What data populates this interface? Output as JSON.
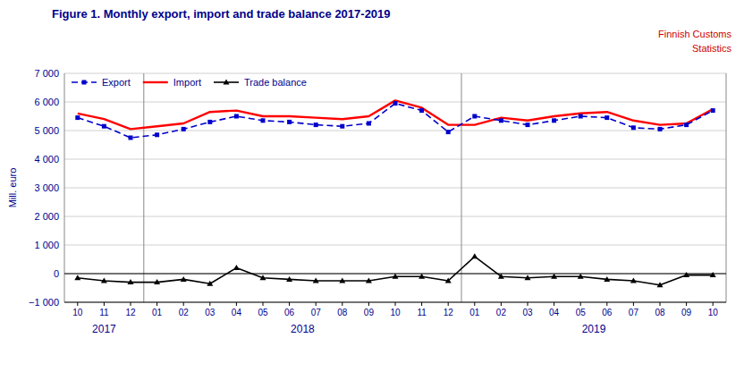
{
  "chart_data": {
    "type": "line",
    "title": "Figure 1. Monthly  export, import and trade balance 2017-2019",
    "annotations": [
      "Finnish Customs",
      "Statistics"
    ],
    "y_label": "Mill. euro",
    "categories": [
      "10",
      "11",
      "12",
      "01",
      "02",
      "03",
      "04",
      "05",
      "06",
      "07",
      "08",
      "09",
      "10",
      "11",
      "12",
      "01",
      "02",
      "03",
      "04",
      "05",
      "06",
      "07",
      "08",
      "09",
      "10"
    ],
    "category_groups": [
      {
        "label": "2017",
        "count": 3
      },
      {
        "label": "2018",
        "count": 12
      },
      {
        "label": "2019",
        "count": 10
      }
    ],
    "series": [
      {
        "name": "Export",
        "color": "#0000CC",
        "line_style": "dashed",
        "marker": "square",
        "values": [
          5450,
          5150,
          4750,
          4850,
          5050,
          5300,
          5500,
          5350,
          5300,
          5200,
          5150,
          5250,
          5950,
          5700,
          4950,
          5500,
          5350,
          5200,
          5350,
          5500,
          5450,
          5100,
          5050,
          5200,
          5700
        ]
      },
      {
        "name": "Import",
        "color": "#FF0000",
        "line_style": "solid",
        "marker": "none",
        "values": [
          5600,
          5400,
          5050,
          5150,
          5250,
          5650,
          5700,
          5500,
          5500,
          5450,
          5400,
          5500,
          6050,
          5800,
          5200,
          5200,
          5450,
          5350,
          5500,
          5600,
          5650,
          5350,
          5200,
          5250,
          5750
        ]
      },
      {
        "name": "Trade balance",
        "color": "#000000",
        "line_style": "solid",
        "marker": "triangle",
        "values": [
          -150,
          -250,
          -300,
          -300,
          -200,
          -350,
          200,
          -150,
          -200,
          -250,
          -250,
          -250,
          -100,
          -100,
          -250,
          600,
          -100,
          -150,
          -100,
          -100,
          -200,
          -250,
          -400,
          -50,
          -50
        ]
      }
    ],
    "ylim": [
      -1000,
      7000
    ],
    "yticks": [
      {
        "value": -1000,
        "label": "−1 000"
      },
      0,
      {
        "value": 1000,
        "label": "1 000"
      },
      {
        "value": 2000,
        "label": "2 000"
      },
      {
        "value": 3000,
        "label": "3 000"
      },
      {
        "value": 4000,
        "label": "4 000"
      },
      {
        "value": 5000,
        "label": "5 000"
      },
      {
        "value": 6000,
        "label": "6 000"
      },
      {
        "value": 7000,
        "label": "7 000"
      }
    ],
    "grid": true,
    "legend": "upper-left"
  }
}
